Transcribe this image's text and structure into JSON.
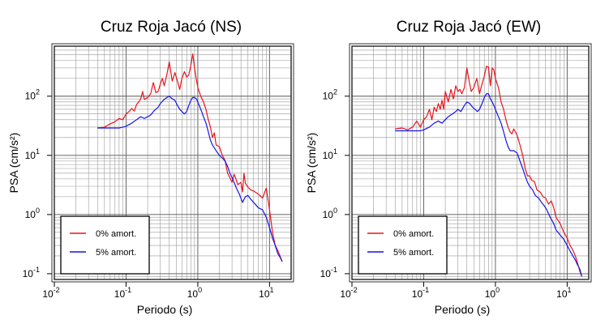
{
  "chart_data": [
    {
      "type": "line",
      "title": "Cruz Roja Jacó (NS)",
      "xlabel": "Periodo (s)",
      "ylabel": "PSA (cm/s²)",
      "xscale": "log",
      "yscale": "log",
      "xlim": [
        0.01,
        20
      ],
      "ylim": [
        0.08,
        700
      ],
      "grid": true,
      "legend_position": "bottom-left",
      "series": [
        {
          "name": "0% amort.",
          "color": "#e8141c",
          "points": [
            [
              0.04,
              29
            ],
            [
              0.05,
              30
            ],
            [
              0.06,
              34
            ],
            [
              0.07,
              37
            ],
            [
              0.08,
              42
            ],
            [
              0.09,
              40
            ],
            [
              0.1,
              50
            ],
            [
              0.11,
              55
            ],
            [
              0.12,
              62
            ],
            [
              0.13,
              56
            ],
            [
              0.14,
              72
            ],
            [
              0.15,
              80
            ],
            [
              0.16,
              90
            ],
            [
              0.17,
              120
            ],
            [
              0.18,
              88
            ],
            [
              0.2,
              95
            ],
            [
              0.22,
              110
            ],
            [
              0.24,
              170
            ],
            [
              0.26,
              115
            ],
            [
              0.28,
              120
            ],
            [
              0.3,
              160
            ],
            [
              0.32,
              200
            ],
            [
              0.34,
              150
            ],
            [
              0.37,
              230
            ],
            [
              0.4,
              380
            ],
            [
              0.44,
              180
            ],
            [
              0.48,
              250
            ],
            [
              0.52,
              180
            ],
            [
              0.56,
              130
            ],
            [
              0.6,
              200
            ],
            [
              0.65,
              260
            ],
            [
              0.7,
              210
            ],
            [
              0.75,
              230
            ],
            [
              0.8,
              330
            ],
            [
              0.85,
              520
            ],
            [
              0.9,
              300
            ],
            [
              0.95,
              200
            ],
            [
              1.0,
              140
            ],
            [
              1.1,
              100
            ],
            [
              1.2,
              80
            ],
            [
              1.3,
              60
            ],
            [
              1.4,
              40
            ],
            [
              1.5,
              30
            ],
            [
              1.6,
              20
            ],
            [
              1.7,
              24
            ],
            [
              1.8,
              15
            ],
            [
              2.0,
              14
            ],
            [
              2.2,
              10
            ],
            [
              2.4,
              8.2
            ],
            [
              2.6,
              5
            ],
            [
              2.8,
              4.2
            ],
            [
              3.0,
              3.5
            ],
            [
              3.2,
              4.8
            ],
            [
              3.4,
              4
            ],
            [
              3.6,
              3.2
            ],
            [
              4.0,
              3.5
            ],
            [
              4.2,
              2.4
            ],
            [
              4.4,
              5
            ],
            [
              4.6,
              3.4
            ],
            [
              5.0,
              2.9
            ],
            [
              5.5,
              2.6
            ],
            [
              6.0,
              2.5
            ],
            [
              7.0,
              2.2
            ],
            [
              8.0,
              1.9
            ],
            [
              9.0,
              2.8
            ],
            [
              10.0,
              1.2
            ],
            [
              11.0,
              0.5
            ],
            [
              12.0,
              0.3
            ],
            [
              13.0,
              0.25
            ],
            [
              14.0,
              0.2
            ],
            [
              15.0,
              0.16
            ]
          ]
        },
        {
          "name": "5% amort.",
          "color": "#1414e8",
          "points": [
            [
              0.04,
              29
            ],
            [
              0.05,
              29
            ],
            [
              0.06,
              29
            ],
            [
              0.07,
              29
            ],
            [
              0.08,
              29
            ],
            [
              0.09,
              30
            ],
            [
              0.1,
              31
            ],
            [
              0.12,
              35
            ],
            [
              0.14,
              40
            ],
            [
              0.16,
              45
            ],
            [
              0.18,
              42
            ],
            [
              0.2,
              45
            ],
            [
              0.22,
              48
            ],
            [
              0.25,
              58
            ],
            [
              0.28,
              65
            ],
            [
              0.3,
              75
            ],
            [
              0.33,
              85
            ],
            [
              0.37,
              95
            ],
            [
              0.4,
              100
            ],
            [
              0.44,
              90
            ],
            [
              0.48,
              85
            ],
            [
              0.52,
              70
            ],
            [
              0.56,
              60
            ],
            [
              0.6,
              55
            ],
            [
              0.65,
              50
            ],
            [
              0.7,
              55
            ],
            [
              0.75,
              70
            ],
            [
              0.8,
              85
            ],
            [
              0.85,
              95
            ],
            [
              0.9,
              95
            ],
            [
              0.95,
              90
            ],
            [
              1.0,
              80
            ],
            [
              1.1,
              60
            ],
            [
              1.2,
              45
            ],
            [
              1.3,
              35
            ],
            [
              1.4,
              25
            ],
            [
              1.5,
              18
            ],
            [
              1.6,
              15
            ],
            [
              1.8,
              12
            ],
            [
              2.0,
              10
            ],
            [
              2.2,
              9
            ],
            [
              2.4,
              8
            ],
            [
              2.6,
              6.5
            ],
            [
              2.8,
              5
            ],
            [
              3.0,
              4.2
            ],
            [
              3.2,
              3.5
            ],
            [
              3.5,
              2.7
            ],
            [
              3.8,
              2.2
            ],
            [
              4.2,
              1.6
            ],
            [
              4.6,
              2.0
            ],
            [
              5.0,
              2.1
            ],
            [
              5.5,
              1.8
            ],
            [
              6.0,
              1.6
            ],
            [
              7.0,
              1.3
            ],
            [
              8.0,
              1.2
            ],
            [
              9.0,
              0.9
            ],
            [
              10.0,
              0.6
            ],
            [
              11.0,
              0.4
            ],
            [
              12.0,
              0.3
            ],
            [
              13.0,
              0.22
            ],
            [
              14.0,
              0.19
            ],
            [
              15.0,
              0.16
            ]
          ]
        }
      ]
    },
    {
      "type": "line",
      "title": "Cruz Roja Jacó (EW)",
      "xlabel": "Periodo (s)",
      "ylabel": "PSA (cm/s²)",
      "xscale": "log",
      "yscale": "log",
      "xlim": [
        0.01,
        20
      ],
      "ylim": [
        0.08,
        700
      ],
      "grid": true,
      "legend_position": "bottom-left",
      "series": [
        {
          "name": "0% amort.",
          "color": "#e8141c",
          "points": [
            [
              0.04,
              28
            ],
            [
              0.05,
              29
            ],
            [
              0.06,
              27
            ],
            [
              0.07,
              30
            ],
            [
              0.08,
              38
            ],
            [
              0.09,
              30
            ],
            [
              0.1,
              40
            ],
            [
              0.11,
              45
            ],
            [
              0.12,
              60
            ],
            [
              0.13,
              40
            ],
            [
              0.14,
              65
            ],
            [
              0.15,
              55
            ],
            [
              0.16,
              75
            ],
            [
              0.17,
              60
            ],
            [
              0.18,
              85
            ],
            [
              0.19,
              60
            ],
            [
              0.2,
              120
            ],
            [
              0.22,
              80
            ],
            [
              0.24,
              130
            ],
            [
              0.26,
              90
            ],
            [
              0.28,
              150
            ],
            [
              0.3,
              120
            ],
            [
              0.32,
              130
            ],
            [
              0.34,
              110
            ],
            [
              0.37,
              140
            ],
            [
              0.4,
              300
            ],
            [
              0.43,
              180
            ],
            [
              0.46,
              120
            ],
            [
              0.5,
              140
            ],
            [
              0.55,
              200
            ],
            [
              0.6,
              110
            ],
            [
              0.65,
              160
            ],
            [
              0.7,
              220
            ],
            [
              0.75,
              320
            ],
            [
              0.8,
              310
            ],
            [
              0.85,
              150
            ],
            [
              0.9,
              300
            ],
            [
              0.95,
              280
            ],
            [
              1.0,
              200
            ],
            [
              1.1,
              140
            ],
            [
              1.2,
              80
            ],
            [
              1.3,
              60
            ],
            [
              1.4,
              40
            ],
            [
              1.5,
              30
            ],
            [
              1.6,
              25
            ],
            [
              1.7,
              23
            ],
            [
              1.8,
              28
            ],
            [
              2.0,
              22
            ],
            [
              2.2,
              15
            ],
            [
              2.4,
              10
            ],
            [
              2.6,
              6
            ],
            [
              2.8,
              4.5
            ],
            [
              3.0,
              4.5
            ],
            [
              3.2,
              3.8
            ],
            [
              3.5,
              3.6
            ],
            [
              3.8,
              2.6
            ],
            [
              4.2,
              2.4
            ],
            [
              4.6,
              2.0
            ],
            [
              5.0,
              1.9
            ],
            [
              5.5,
              1.5
            ],
            [
              6.0,
              1.7
            ],
            [
              6.5,
              1.3
            ],
            [
              7.0,
              0.9
            ],
            [
              8.0,
              0.7
            ],
            [
              9.0,
              0.5
            ],
            [
              10.0,
              0.4
            ],
            [
              11.0,
              0.3
            ],
            [
              12.0,
              0.25
            ],
            [
              13.0,
              0.2
            ],
            [
              14.0,
              0.15
            ],
            [
              15.0,
              0.11
            ],
            [
              16.0,
              0.09
            ]
          ]
        },
        {
          "name": "5% amort.",
          "color": "#1414e8",
          "points": [
            [
              0.04,
              26
            ],
            [
              0.05,
              26
            ],
            [
              0.06,
              26
            ],
            [
              0.07,
              26
            ],
            [
              0.08,
              26
            ],
            [
              0.09,
              26
            ],
            [
              0.1,
              27
            ],
            [
              0.12,
              30
            ],
            [
              0.14,
              35
            ],
            [
              0.16,
              38
            ],
            [
              0.18,
              35
            ],
            [
              0.2,
              40
            ],
            [
              0.22,
              45
            ],
            [
              0.25,
              50
            ],
            [
              0.28,
              55
            ],
            [
              0.3,
              60
            ],
            [
              0.33,
              55
            ],
            [
              0.37,
              70
            ],
            [
              0.4,
              80
            ],
            [
              0.44,
              75
            ],
            [
              0.48,
              65
            ],
            [
              0.52,
              60
            ],
            [
              0.56,
              55
            ],
            [
              0.6,
              60
            ],
            [
              0.65,
              75
            ],
            [
              0.7,
              95
            ],
            [
              0.75,
              110
            ],
            [
              0.8,
              110
            ],
            [
              0.85,
              90
            ],
            [
              0.9,
              80
            ],
            [
              0.95,
              70
            ],
            [
              1.0,
              60
            ],
            [
              1.1,
              45
            ],
            [
              1.2,
              35
            ],
            [
              1.3,
              25
            ],
            [
              1.4,
              18
            ],
            [
              1.5,
              14
            ],
            [
              1.6,
              12
            ],
            [
              1.8,
              12
            ],
            [
              2.0,
              11
            ],
            [
              2.2,
              8
            ],
            [
              2.4,
              6
            ],
            [
              2.6,
              4.5
            ],
            [
              2.8,
              3.5
            ],
            [
              3.0,
              3.0
            ],
            [
              3.3,
              2.6
            ],
            [
              3.6,
              2.1
            ],
            [
              4.0,
              1.9
            ],
            [
              4.4,
              1.6
            ],
            [
              4.8,
              1.4
            ],
            [
              5.2,
              1.2
            ],
            [
              5.8,
              0.9
            ],
            [
              6.5,
              0.7
            ],
            [
              7.0,
              0.55
            ],
            [
              8.0,
              0.45
            ],
            [
              9.0,
              0.38
            ],
            [
              10.0,
              0.3
            ],
            [
              11.0,
              0.24
            ],
            [
              12.0,
              0.2
            ],
            [
              13.0,
              0.17
            ],
            [
              14.0,
              0.14
            ],
            [
              15.0,
              0.12
            ],
            [
              16.0,
              0.09
            ]
          ]
        }
      ]
    }
  ]
}
